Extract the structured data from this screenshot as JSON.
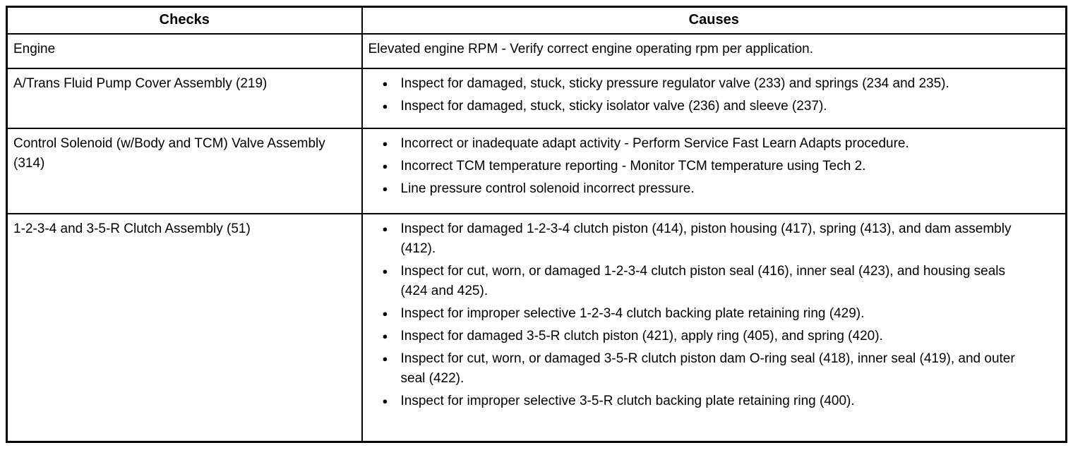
{
  "document": {
    "colors": {
      "text": "#000000",
      "border": "#000000",
      "background": "#ffffff"
    },
    "table": {
      "headers": {
        "checks": "Checks",
        "causes": "Causes"
      },
      "rows": [
        {
          "check": "Engine",
          "bulleted": false,
          "causes": [
            "Elevated engine RPM - Verify correct engine operating rpm per application."
          ]
        },
        {
          "check": "A/Trans Fluid Pump Cover Assembly (219)",
          "bulleted": true,
          "causes": [
            "Inspect for damaged, stuck, sticky pressure regulator valve (233) and springs (234 and 235).",
            "Inspect for damaged, stuck, sticky isolator valve (236) and sleeve (237)."
          ]
        },
        {
          "check": "Control Solenoid (w/Body and TCM) Valve Assembly (314)",
          "bulleted": true,
          "causes": [
            "Incorrect or inadequate adapt activity - Perform Service Fast Learn Adapts procedure.",
            "Incorrect TCM temperature reporting - Monitor TCM temperature using Tech 2.",
            "Line pressure control solenoid incorrect pressure."
          ]
        },
        {
          "check": "1-2-3-4 and 3-5-R Clutch Assembly (51)",
          "bulleted": true,
          "causes": [
            "Inspect for damaged 1-2-3-4 clutch piston (414), piston housing (417), spring (413), and dam assembly (412).",
            "Inspect for cut, worn, or damaged 1-2-3-4 clutch piston seal (416), inner seal (423), and housing seals (424 and 425).",
            "Inspect for improper selective 1-2-3-4 clutch backing plate retaining ring (429).",
            "Inspect for damaged 3-5-R clutch piston (421), apply ring (405), and spring (420).",
            "Inspect for cut, worn, or damaged 3-5-R clutch piston dam O-ring seal (418), inner seal (419), and outer seal (422).",
            "Inspect for improper selective 3-5-R clutch backing plate retaining ring (400)."
          ]
        }
      ]
    }
  }
}
